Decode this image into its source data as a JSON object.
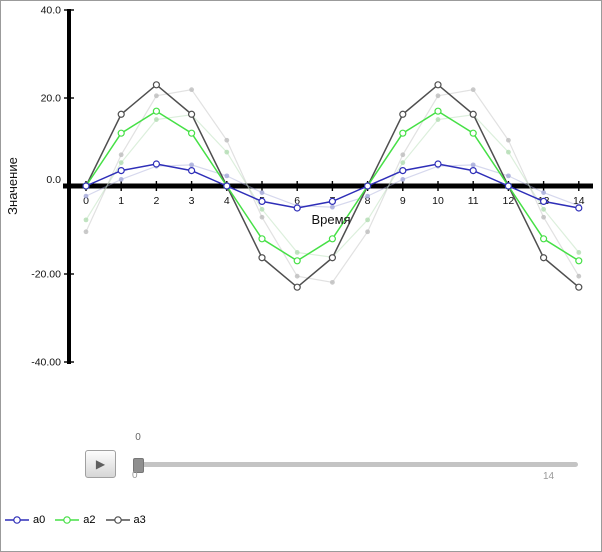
{
  "chart_data": {
    "type": "line",
    "title": "",
    "xlabel": "Время",
    "ylabel": "Значение",
    "x": [
      0,
      1,
      2,
      3,
      4,
      5,
      6,
      7,
      8,
      9,
      10,
      11,
      12,
      13,
      14
    ],
    "x_tick_labels": [
      "0",
      "1",
      "2",
      "3",
      "4",
      "5",
      "6",
      "7",
      "8",
      "9",
      "10",
      "11",
      "12",
      "13",
      "14"
    ],
    "xlim": [
      0,
      14
    ],
    "ylim": [
      -40,
      40
    ],
    "grid": false,
    "legend_position": "bottom-left",
    "axis_color": "#000000",
    "marker": "circle-open",
    "y_ticks": [
      {
        "value": 40,
        "label": "40.0"
      },
      {
        "value": 20,
        "label": "20.0"
      },
      {
        "value": 0,
        "label": "0.0"
      },
      {
        "value": -20,
        "label": "-20.00"
      },
      {
        "value": -40,
        "label": "-40.00"
      }
    ],
    "series": [
      {
        "name": "a0",
        "color": "#2e2eb8",
        "ghost_color": "#a3a8d8",
        "values": [
          0,
          3.5,
          5,
          3.5,
          0,
          -3.5,
          -5,
          -3.5,
          0,
          3.5,
          5,
          3.5,
          0,
          -3.5,
          -5
        ],
        "ghost": [
          -2.3,
          1.5,
          4.5,
          4.8,
          2.3,
          -1.5,
          -4.5,
          -4.8,
          -2.3,
          1.5,
          4.5,
          4.8,
          2.3,
          -1.5,
          -4.5
        ]
      },
      {
        "name": "a2",
        "color": "#46e046",
        "ghost_color": "#b2dcb2",
        "values": [
          0,
          12,
          17,
          12,
          0,
          -12,
          -17,
          -12,
          0,
          12,
          17,
          12,
          0,
          -12,
          -17
        ],
        "ghost": [
          -7.7,
          5.3,
          15.1,
          16.2,
          7.7,
          -5.3,
          -15.1,
          -16.2,
          -7.7,
          5.3,
          15.1,
          16.2,
          7.7,
          -5.3,
          -15.1
        ]
      },
      {
        "name": "a3",
        "color": "#4f4f4f",
        "ghost_color": "#bdbdbd",
        "values": [
          0,
          16.3,
          23,
          16.3,
          0,
          -16.3,
          -23,
          -16.3,
          0,
          16.3,
          23,
          16.3,
          0,
          -16.3,
          -23
        ],
        "ghost": [
          -10.4,
          7.1,
          20.5,
          21.9,
          10.4,
          -7.1,
          -20.5,
          -21.9,
          -10.4,
          7.1,
          20.5,
          21.9,
          10.4,
          -7.1,
          -20.5
        ]
      }
    ]
  },
  "controls": {
    "play_icon": "▶",
    "slider": {
      "handle_label": "0",
      "min_label": "0",
      "max_label": "14",
      "value": 0
    }
  }
}
